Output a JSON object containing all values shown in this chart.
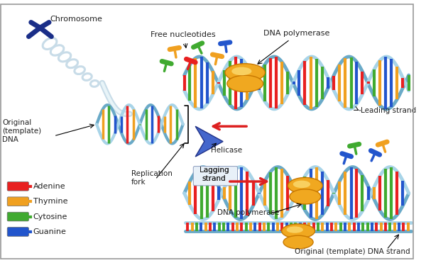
{
  "background_color": "#ffffff",
  "legend_items": [
    {
      "label": "Adenine",
      "color": "#e82020"
    },
    {
      "label": "Thymine",
      "color": "#f0a020"
    },
    {
      "label": "Cytosine",
      "color": "#40aa30"
    },
    {
      "label": "Guanine",
      "color": "#2255cc"
    }
  ],
  "labels": {
    "chromosome": "Chromosome",
    "original_dna": "Original\n(template)\nDNA",
    "replication_fork": "Replication\nfork",
    "free_nucleotides": "Free nucleotides",
    "dna_poly_top": "DNA polymerase",
    "helicase": "Helicase",
    "lagging_strand": "Lagging\nstrand",
    "leading_strand": "Leading strand",
    "dna_poly_bot": "DNA polymerase",
    "orig_template": "Original (template) DNA strand"
  },
  "colors": {
    "backbone1": "#a8d4e8",
    "backbone2": "#6aaac8",
    "chrom_dark": "#1a2e88",
    "chrom_mid": "#3355aa",
    "fiber": "#c8dce8",
    "polymerase": "#f0a820",
    "poly_edge": "#c87800",
    "helicase": "#4466cc",
    "hel_edge": "#223388",
    "arrow_red": "#dd2020",
    "label_col": "#222222",
    "nc": [
      "#e82020",
      "#f0a020",
      "#40aa30",
      "#2255cc"
    ]
  }
}
